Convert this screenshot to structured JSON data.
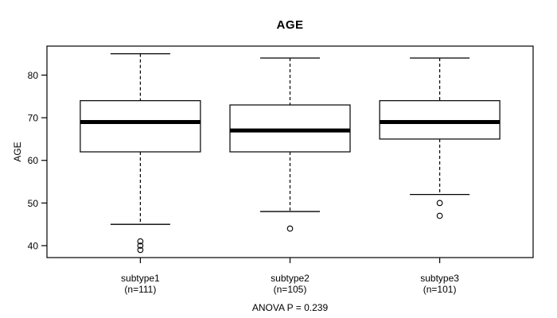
{
  "chart_data": {
    "type": "boxplot",
    "title": "AGE",
    "ylabel": "AGE",
    "footer": "ANOVA P = 0.239",
    "y_ticks": [
      40,
      50,
      60,
      70,
      80
    ],
    "ylim": [
      37.2,
      86.8
    ],
    "grid": false,
    "orientation": "vertical",
    "groups": [
      {
        "label": "subtype1",
        "n_label": "(n=111)",
        "whisker_low": 45,
        "q1": 62,
        "median": 69,
        "q3": 74,
        "whisker_high": 85,
        "outliers": [
          41,
          40,
          39
        ]
      },
      {
        "label": "subtype2",
        "n_label": "(n=105)",
        "whisker_low": 48,
        "q1": 62,
        "median": 67,
        "q3": 73,
        "whisker_high": 84,
        "outliers": [
          44
        ]
      },
      {
        "label": "subtype3",
        "n_label": "(n=101)",
        "whisker_low": 52,
        "q1": 65,
        "median": 69,
        "q3": 74,
        "whisker_high": 84,
        "outliers": [
          50,
          47
        ]
      }
    ],
    "colors": {
      "line": "#000000",
      "box_fill": "#ffffff",
      "background": "#ffffff"
    }
  }
}
